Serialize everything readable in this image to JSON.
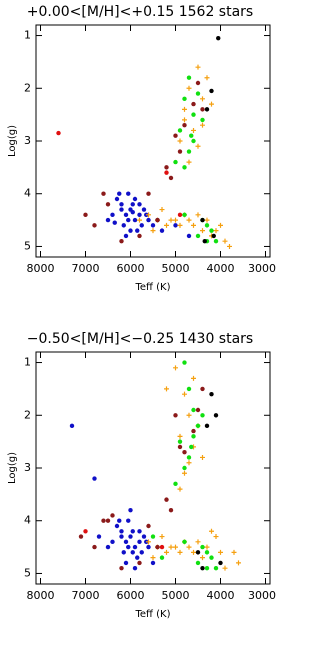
{
  "chart_data": [
    {
      "type": "scatter",
      "title": "+0.00<[M/H]<+0.15 1562 stars",
      "xlabel": "Teff (K)",
      "ylabel": "Log(g)",
      "xlim": [
        8100,
        2900
      ],
      "ylim": [
        5.2,
        0.8
      ],
      "xticks": [
        8000,
        7000,
        6000,
        5000,
        4000,
        3000
      ],
      "yticks": [
        1,
        2,
        3,
        4,
        5
      ],
      "series": [
        {
          "color": "#1010c8",
          "marker": "circle",
          "x": [
            6200,
            6100,
            6000,
            5900,
            5800,
            6300,
            6150,
            5950,
            5850,
            6050,
            5700,
            5600,
            6400,
            5500,
            6250,
            6100,
            5900,
            5750,
            6000,
            5400,
            6200,
            5800,
            5300,
            5000,
            6500,
            5650,
            4700,
            6050,
            5950,
            6350
          ],
          "values": [
            4.2,
            4.4,
            4.3,
            4.5,
            4.4,
            4.1,
            4.6,
            4.2,
            4.7,
            4.5,
            4.3,
            4.5,
            4.4,
            4.6,
            4.0,
            4.8,
            4.1,
            4.6,
            4.7,
            4.5,
            4.3,
            4.2,
            4.7,
            4.6,
            4.5,
            4.4,
            4.8,
            4.0,
            4.35,
            4.55
          ]
        },
        {
          "color": "#f5a010",
          "marker": "plus",
          "x": [
            4500,
            4700,
            4800,
            4400,
            4900,
            4600,
            4300,
            4200,
            4700,
            4500,
            4800,
            4400,
            5600,
            5400,
            5200,
            5000,
            4800,
            4600,
            4400,
            4200,
            4000,
            5500,
            5300,
            5100,
            4900,
            4700,
            4500,
            3900,
            5800,
            4300,
            3800,
            4100
          ],
          "values": [
            1.6,
            2.0,
            2.6,
            2.2,
            3.0,
            2.8,
            1.8,
            2.3,
            3.4,
            3.1,
            2.4,
            2.7,
            4.4,
            4.5,
            4.6,
            4.5,
            4.4,
            4.6,
            4.7,
            4.8,
            4.6,
            4.7,
            4.3,
            4.5,
            4.6,
            4.5,
            4.4,
            4.9,
            4.5,
            4.5,
            5.0,
            4.7
          ]
        },
        {
          "color": "#10e010",
          "marker": "circle",
          "x": [
            4700,
            4800,
            4600,
            4500,
            4900,
            4700,
            4400,
            4800,
            4600,
            5000,
            4300,
            4200,
            4100,
            4500,
            4800,
            4400,
            4300,
            4650
          ],
          "values": [
            1.8,
            2.2,
            2.5,
            2.1,
            2.8,
            3.2,
            2.6,
            3.5,
            3.0,
            3.4,
            4.6,
            4.7,
            4.9,
            4.8,
            4.4,
            4.5,
            4.9,
            2.9
          ]
        },
        {
          "color": "#8b1a1a",
          "marker": "circle",
          "x": [
            5000,
            4900,
            5200,
            4600,
            6500,
            6800,
            5600,
            5800,
            4500,
            5100,
            4800,
            6200,
            7000,
            5400,
            4400,
            6600
          ],
          "values": [
            2.9,
            3.2,
            3.5,
            2.3,
            4.2,
            4.6,
            4.0,
            4.8,
            1.9,
            3.7,
            2.7,
            4.9,
            4.4,
            4.5,
            2.4,
            4.0
          ]
        },
        {
          "color": "#e01010",
          "marker": "circle",
          "x": [
            7600,
            5200,
            4900
          ],
          "values": [
            2.85,
            3.6,
            4.4
          ]
        },
        {
          "color": "#000000",
          "marker": "circle",
          "x": [
            4050,
            4200,
            4300,
            4150,
            4400,
            4350
          ],
          "values": [
            1.05,
            2.05,
            2.4,
            4.8,
            4.5,
            4.9
          ]
        }
      ]
    },
    {
      "type": "scatter",
      "title": "−0.50<[M/H]<−0.25 1430 stars",
      "xlabel": "Teff (K)",
      "ylabel": "Log(g)",
      "xlim": [
        8100,
        2900
      ],
      "ylim": [
        5.2,
        0.8
      ],
      "xticks": [
        8000,
        7000,
        6000,
        5000,
        4000,
        3000
      ],
      "yticks": [
        1,
        2,
        3,
        4,
        5
      ],
      "series": [
        {
          "color": "#1010c8",
          "marker": "circle",
          "x": [
            7300,
            6800,
            6200,
            6100,
            6000,
            5900,
            5800,
            6300,
            6150,
            5950,
            5850,
            6050,
            5700,
            5600,
            6400,
            5500,
            6250,
            6100,
            5900,
            5750,
            6000,
            6200,
            5800,
            6500,
            6700,
            5650,
            6050,
            5950
          ],
          "values": [
            2.2,
            3.2,
            4.2,
            4.4,
            4.3,
            4.5,
            4.4,
            4.1,
            4.6,
            4.2,
            4.7,
            4.5,
            4.3,
            4.5,
            4.4,
            4.8,
            4.0,
            4.8,
            4.9,
            4.6,
            3.8,
            4.3,
            4.2,
            4.5,
            4.3,
            4.4,
            4.0,
            4.6
          ]
        },
        {
          "color": "#f5a010",
          "marker": "plus",
          "x": [
            5000,
            4800,
            4700,
            4900,
            4600,
            4500,
            4700,
            4800,
            4400,
            4900,
            5200,
            4600,
            5600,
            5400,
            5200,
            5000,
            4800,
            4600,
            4400,
            4200,
            4000,
            5500,
            5300,
            5100,
            4900,
            4700,
            4500,
            3900,
            3700,
            4300,
            3600,
            4100
          ],
          "values": [
            1.1,
            1.6,
            2.0,
            2.4,
            2.6,
            2.2,
            2.9,
            3.1,
            2.8,
            3.4,
            1.5,
            1.3,
            4.4,
            4.5,
            4.6,
            4.5,
            4.4,
            4.6,
            4.7,
            4.2,
            4.6,
            4.7,
            4.3,
            4.5,
            4.6,
            4.5,
            4.4,
            4.9,
            4.6,
            4.5,
            4.8,
            4.3
          ]
        },
        {
          "color": "#10e010",
          "marker": "circle",
          "x": [
            4800,
            4700,
            4600,
            4500,
            4900,
            4700,
            4400,
            4800,
            4600,
            5000,
            4300,
            4200,
            4100,
            4500,
            4800,
            4400,
            4300,
            5300,
            5500,
            4650
          ],
          "values": [
            1.0,
            1.5,
            1.9,
            2.2,
            2.5,
            2.8,
            2.0,
            3.0,
            2.4,
            3.3,
            4.6,
            4.7,
            4.9,
            4.8,
            4.4,
            4.5,
            4.9,
            4.7,
            4.3,
            2.6
          ]
        },
        {
          "color": "#8b1a1a",
          "marker": "circle",
          "x": [
            5000,
            4900,
            5200,
            4600,
            6500,
            6800,
            5600,
            5800,
            4500,
            5100,
            4800,
            6200,
            7100,
            5400,
            4400,
            6600,
            6400
          ],
          "values": [
            2.0,
            2.6,
            3.6,
            2.3,
            4.0,
            4.5,
            4.1,
            4.8,
            1.9,
            3.8,
            2.7,
            4.9,
            4.3,
            4.5,
            1.5,
            4.0,
            3.9
          ]
        },
        {
          "color": "#e01010",
          "marker": "circle",
          "x": [
            7000,
            5300
          ],
          "values": [
            4.2,
            4.5
          ]
        },
        {
          "color": "#000000",
          "marker": "circle",
          "x": [
            4200,
            4100,
            4300,
            4500,
            4000,
            4400
          ],
          "values": [
            1.6,
            2.0,
            2.2,
            4.6,
            4.8,
            4.9
          ]
        }
      ]
    }
  ]
}
